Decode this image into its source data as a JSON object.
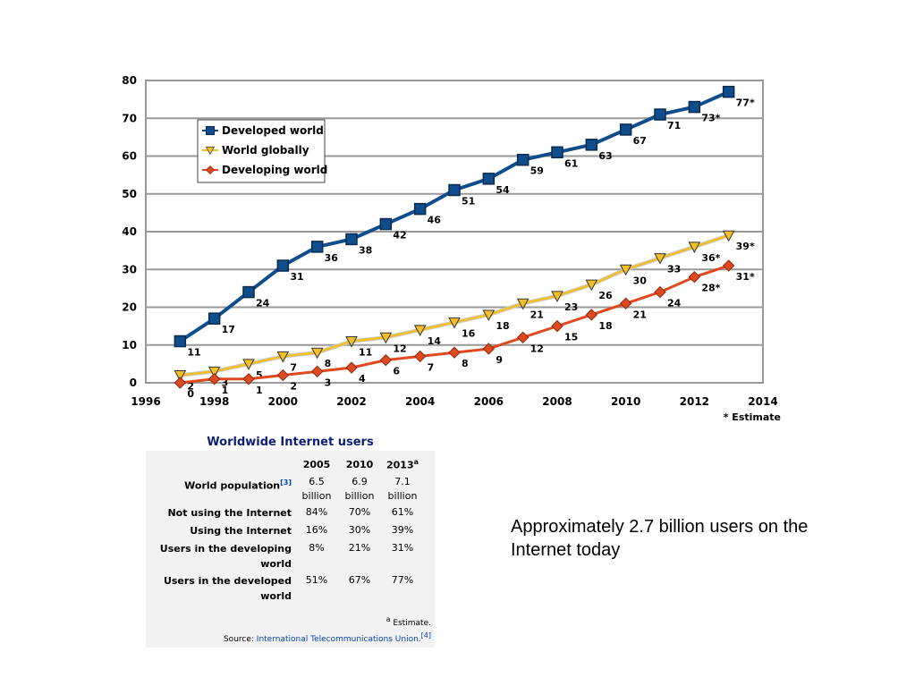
{
  "chart_data": {
    "type": "line",
    "title": "",
    "xlabel": "",
    "ylabel": "",
    "xlim": [
      1996,
      2014
    ],
    "ylim": [
      0,
      80
    ],
    "x_ticks": [
      1996,
      1998,
      2000,
      2002,
      2004,
      2006,
      2008,
      2010,
      2012,
      2014
    ],
    "y_ticks": [
      0,
      10,
      20,
      30,
      40,
      50,
      60,
      70,
      80
    ],
    "grid": "horizontal",
    "legend_position": "top-left",
    "note": "* Estimate",
    "x": [
      1997,
      1998,
      1999,
      2000,
      2001,
      2002,
      2003,
      2004,
      2005,
      2006,
      2007,
      2008,
      2009,
      2010,
      2011,
      2012,
      2013
    ],
    "series": [
      {
        "name": "Developed world",
        "color": "#0f4d8c",
        "marker": "square",
        "values": [
          11,
          17,
          24,
          31,
          36,
          38,
          42,
          46,
          51,
          54,
          59,
          61,
          63,
          67,
          71,
          73,
          77
        ],
        "labels": [
          "11",
          "17",
          "24",
          "31",
          "36",
          "38",
          "42",
          "46",
          "51",
          "54",
          "59",
          "61",
          "63",
          "67",
          "71",
          "73*",
          "77*"
        ]
      },
      {
        "name": "World globally",
        "color": "#f2c022",
        "marker": "triangle-down",
        "values": [
          2,
          3,
          5,
          7,
          8,
          11,
          12,
          14,
          16,
          18,
          21,
          23,
          26,
          30,
          33,
          36,
          39
        ],
        "labels": [
          "2",
          "3",
          "5",
          "7",
          "8",
          "11",
          "12",
          "14",
          "16",
          "18",
          "21",
          "23",
          "26",
          "30",
          "33",
          "36*",
          "39*"
        ]
      },
      {
        "name": "Developing world",
        "color": "#e0491f",
        "marker": "diamond",
        "values": [
          0,
          1,
          1,
          2,
          3,
          4,
          6,
          7,
          8,
          9,
          12,
          15,
          18,
          21,
          24,
          28,
          31
        ],
        "labels": [
          "0",
          "1",
          "1",
          "2",
          "3",
          "4",
          "6",
          "7",
          "8",
          "9",
          "12",
          "15",
          "18",
          "21",
          "24",
          "28*",
          "31*"
        ]
      }
    ]
  },
  "table": {
    "title": "Worldwide Internet users",
    "columns": [
      "2005",
      "2010",
      "2013"
    ],
    "column_sup": [
      "",
      "",
      "a"
    ],
    "rows": [
      {
        "label": "World population",
        "sup": "[3]",
        "values": [
          "6.5 billion",
          "6.9 billion",
          "7.1 billion"
        ]
      },
      {
        "label": "Not using the Internet",
        "sup": "",
        "values": [
          "84%",
          "70%",
          "61%"
        ]
      },
      {
        "label": "Using the Internet",
        "sup": "",
        "values": [
          "16%",
          "30%",
          "39%"
        ]
      },
      {
        "label": "Users in the developing world",
        "sup": "",
        "values": [
          "8%",
          "21%",
          "31%"
        ]
      },
      {
        "label": "Users in the developed world",
        "sup": "",
        "values": [
          "51%",
          "67%",
          "77%"
        ]
      }
    ],
    "estimate_sup": "a",
    "estimate_note": "Estimate.",
    "source_prefix": "Source:",
    "source_link": "International Telecommunications Union.",
    "source_sup": "[4]"
  },
  "summary_text": "Approximately 2.7 billion users on the Internet today"
}
